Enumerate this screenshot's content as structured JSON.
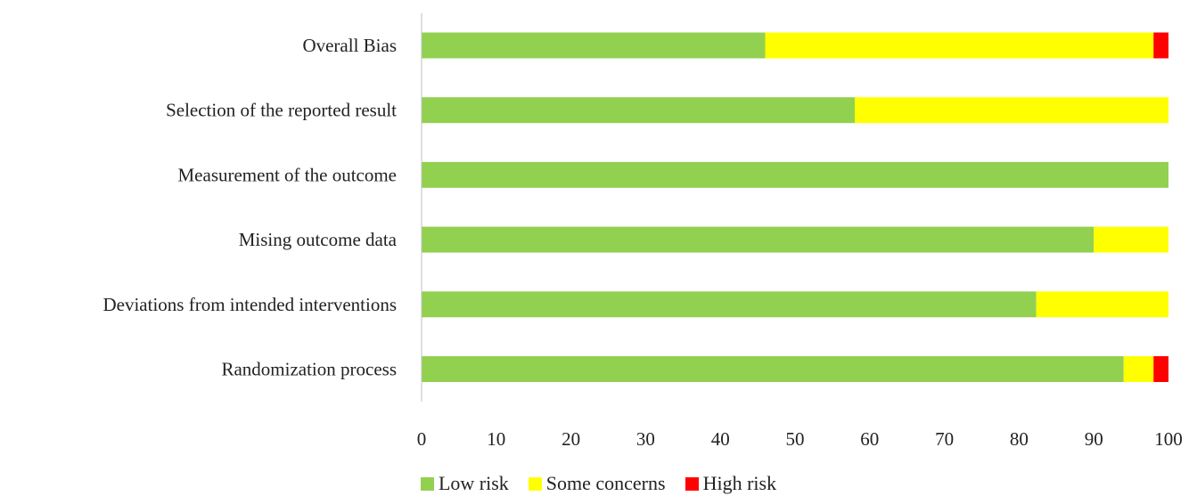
{
  "chart_data": {
    "type": "bar",
    "orientation": "horizontal",
    "stacked": true,
    "title": "",
    "xlabel": "",
    "ylabel": "",
    "xlim": [
      0,
      100
    ],
    "xticks": [
      0,
      10,
      20,
      30,
      40,
      50,
      60,
      70,
      80,
      90,
      100
    ],
    "grid": false,
    "legend_position": "bottom",
    "categories": [
      "Overall Bias",
      "Selection of the reported result",
      "Measurement of the outcome",
      "Mising outcome data",
      "Deviations from intended interventions",
      "Randomization process"
    ],
    "series": [
      {
        "name": "Low risk",
        "color": "#92D050",
        "values": [
          46,
          58,
          100,
          90,
          82.3,
          94
        ]
      },
      {
        "name": "Some concerns",
        "color": "#FFFF00",
        "values": [
          52,
          42,
          0,
          10,
          17.7,
          4
        ]
      },
      {
        "name": "High risk",
        "color": "#FF0000",
        "values": [
          2,
          0,
          0,
          0,
          0,
          2
        ]
      }
    ]
  }
}
